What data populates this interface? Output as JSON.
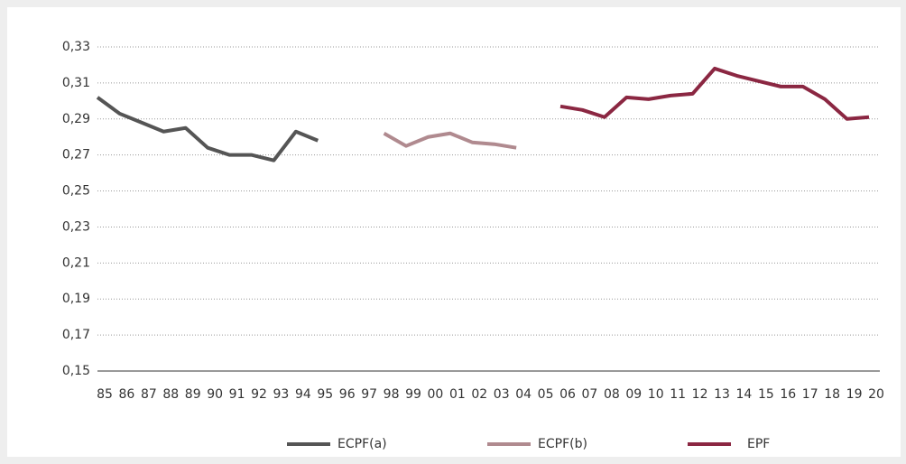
{
  "chart_data": {
    "type": "line",
    "categories": [
      "85",
      "86",
      "87",
      "88",
      "89",
      "90",
      "91",
      "92",
      "93",
      "94",
      "95",
      "96",
      "97",
      "98",
      "99",
      "00",
      "01",
      "02",
      "03",
      "04",
      "05",
      "06",
      "07",
      "08",
      "09",
      "10",
      "11",
      "12",
      "13",
      "14",
      "15",
      "16",
      "17",
      "18",
      "19",
      "20"
    ],
    "series": [
      {
        "name": "ECPF(a)",
        "color": "#555555",
        "values": [
          0.302,
          0.293,
          0.288,
          0.283,
          0.285,
          0.274,
          0.27,
          0.27,
          0.267,
          0.283,
          0.278,
          null,
          null,
          null,
          null,
          null,
          null,
          null,
          null,
          null,
          null,
          null,
          null,
          null,
          null,
          null,
          null,
          null,
          null,
          null,
          null,
          null,
          null,
          null,
          null,
          null
        ]
      },
      {
        "name": "ECPF(b)",
        "color": "#b08a8f",
        "values": [
          null,
          null,
          null,
          null,
          null,
          null,
          null,
          null,
          null,
          null,
          null,
          null,
          null,
          0.282,
          0.275,
          0.28,
          0.282,
          0.277,
          0.276,
          0.274,
          null,
          null,
          null,
          null,
          null,
          null,
          null,
          null,
          null,
          null,
          null,
          null,
          null,
          null,
          null,
          null
        ]
      },
      {
        "name": "EPF",
        "color": "#8b2742",
        "values": [
          null,
          null,
          null,
          null,
          null,
          null,
          null,
          null,
          null,
          null,
          null,
          null,
          null,
          null,
          null,
          null,
          null,
          null,
          null,
          null,
          null,
          0.297,
          0.295,
          0.291,
          0.302,
          0.301,
          0.303,
          0.304,
          0.318,
          0.314,
          0.311,
          0.308,
          0.308,
          0.301,
          0.29,
          0.291
        ]
      }
    ],
    "ylim": [
      0.15,
      0.33
    ],
    "yticks": [
      {
        "value": 0.15,
        "label": "0,15"
      },
      {
        "value": 0.17,
        "label": "0,17"
      },
      {
        "value": 0.19,
        "label": "0,19"
      },
      {
        "value": 0.21,
        "label": "0,21"
      },
      {
        "value": 0.23,
        "label": "0,23"
      },
      {
        "value": 0.25,
        "label": "0,25"
      },
      {
        "value": 0.27,
        "label": "0,27"
      },
      {
        "value": 0.29,
        "label": "0,29"
      },
      {
        "value": 0.31,
        "label": "0,31"
      },
      {
        "value": 0.33,
        "label": "0,33"
      }
    ],
    "grid": true,
    "legend": "bottom"
  }
}
